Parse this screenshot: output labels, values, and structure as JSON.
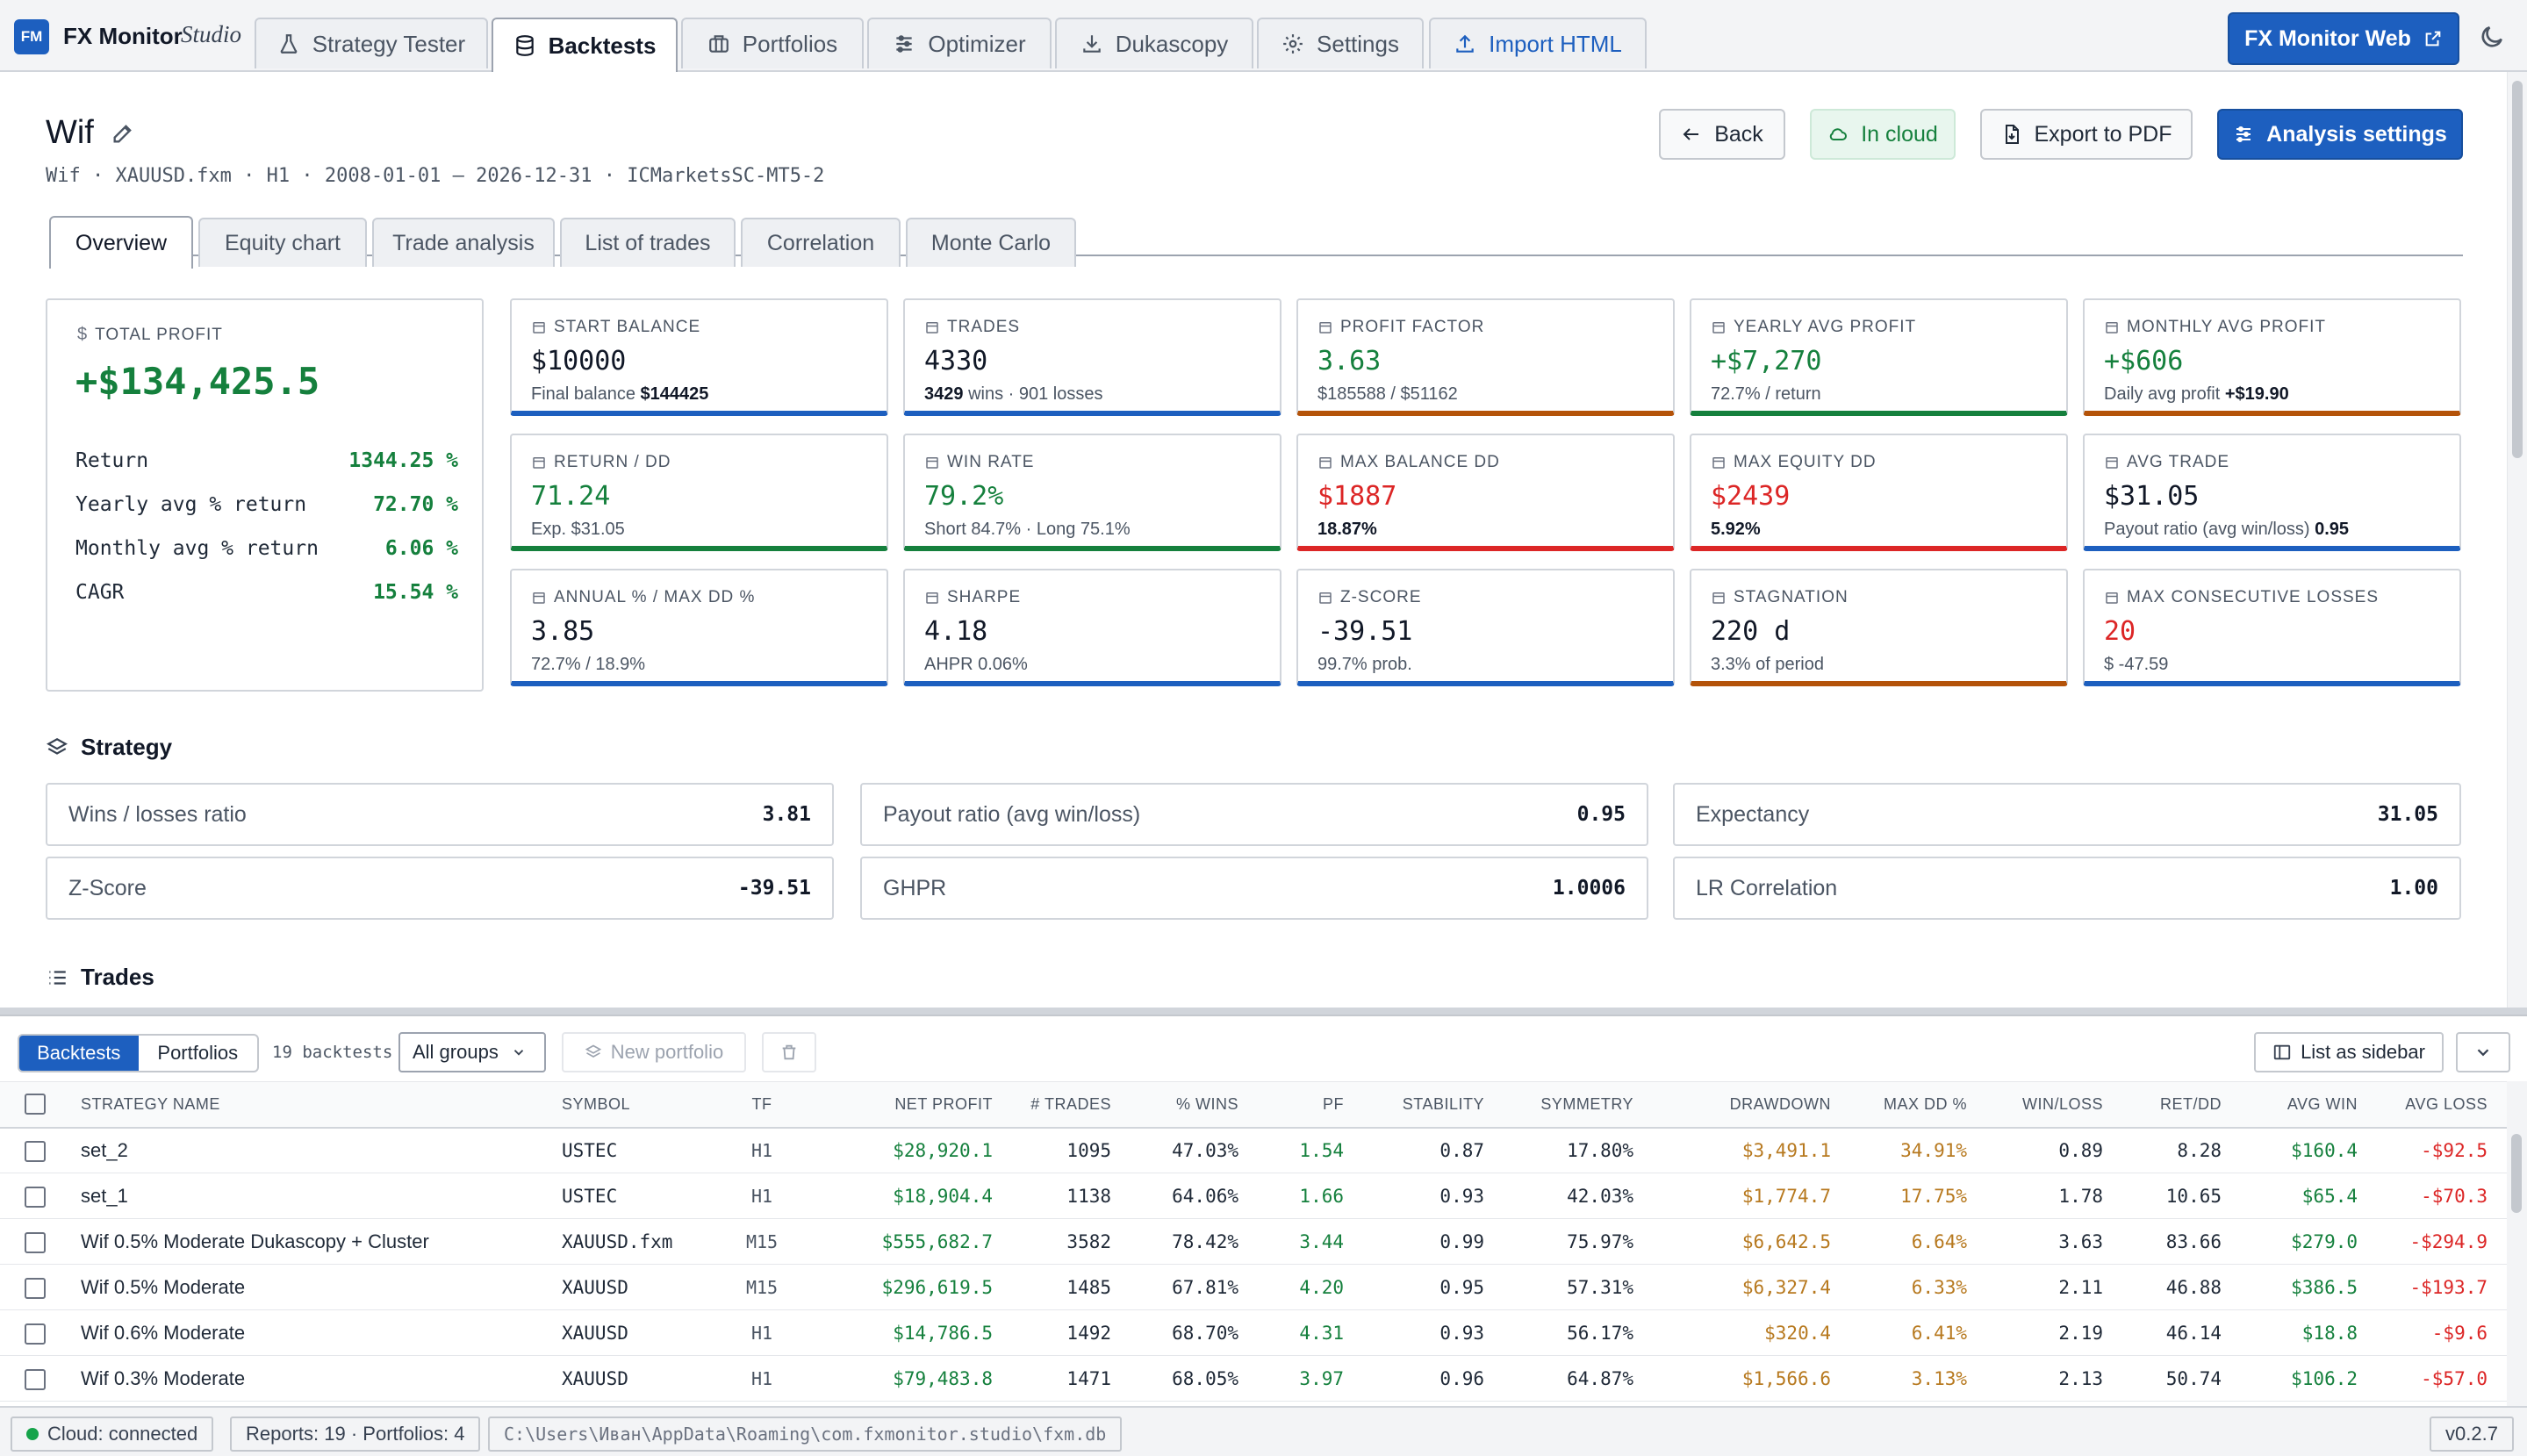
{
  "app": {
    "logo": "FM",
    "name": "FX Monitor",
    "sub": "Studio",
    "web_button": "FX Monitor Web"
  },
  "nav": [
    {
      "label": "Strategy Tester",
      "icon": "flask-icon"
    },
    {
      "label": "Backtests",
      "icon": "database-icon"
    },
    {
      "label": "Portfolios",
      "icon": "briefcase-icon"
    },
    {
      "label": "Optimizer",
      "icon": "sliders-icon"
    },
    {
      "label": "Dukascopy",
      "icon": "download-icon"
    },
    {
      "label": "Settings",
      "icon": "gear-icon"
    },
    {
      "label": "Import HTML",
      "icon": "upload-icon"
    }
  ],
  "header": {
    "title": "Wif",
    "subtitle": "Wif · XAUUSD.fxm · H1 · 2008-01-01 – 2026-12-31 · ICMarketsSC-MT5-2",
    "back": "Back",
    "cloud": "In cloud",
    "export": "Export to PDF",
    "analysis": "Analysis settings"
  },
  "subtabs": [
    "Overview",
    "Equity chart",
    "Trade analysis",
    "List of trades",
    "Correlation",
    "Monte Carlo"
  ],
  "total": {
    "label": "TOTAL PROFIT",
    "value": "+$134,425.5",
    "rows": [
      {
        "label": "Return",
        "value": "1344.25 %"
      },
      {
        "label": "Yearly avg % return",
        "value": "72.70 %"
      },
      {
        "label": "Monthly avg % return",
        "value": "6.06 %"
      },
      {
        "label": "CAGR",
        "value": "15.54 %"
      }
    ]
  },
  "metrics": [
    {
      "label": "START BALANCE",
      "value": "$10000",
      "sub_a": "Final balance",
      "sub_b": "$144425",
      "sub_c": ""
    },
    {
      "label": "TRADES",
      "value": "4330",
      "sub_a": "",
      "sub_b": "3429",
      "sub_c": "wins · 901 losses"
    },
    {
      "label": "PROFIT FACTOR",
      "value": "3.63",
      "sub_a": "$185588 / $51162",
      "sub_b": "",
      "sub_c": ""
    },
    {
      "label": "YEARLY AVG PROFIT",
      "value": "+$7,270",
      "sub_a": "72.7% / return",
      "sub_b": "",
      "sub_c": ""
    },
    {
      "label": "MONTHLY AVG PROFIT",
      "value": "+$606",
      "sub_a": "Daily avg profit",
      "sub_b": "+$19.90",
      "sub_c": ""
    },
    {
      "label": "RETURN / DD",
      "value": "71.24",
      "sub_a": "Exp. $31.05",
      "sub_b": "",
      "sub_c": ""
    },
    {
      "label": "WIN RATE",
      "value": "79.2%",
      "sub_a": "Short 84.7% · Long 75.1%",
      "sub_b": "",
      "sub_c": ""
    },
    {
      "label": "MAX BALANCE DD",
      "value": "$1887",
      "sub_a": "",
      "sub_b": "18.87%",
      "sub_c": ""
    },
    {
      "label": "MAX EQUITY DD",
      "value": "$2439",
      "sub_a": "",
      "sub_b": "5.92%",
      "sub_c": ""
    },
    {
      "label": "AVG TRADE",
      "value": "$31.05",
      "sub_a": "Payout ratio (avg win/loss)",
      "sub_b": "0.95",
      "sub_c": ""
    },
    {
      "label": "ANNUAL % / MAX DD %",
      "value": "3.85",
      "sub_a": "72.7% / 18.9%",
      "sub_b": "",
      "sub_c": ""
    },
    {
      "label": "SHARPE",
      "value": "4.18",
      "sub_a": "AHPR 0.06%",
      "sub_b": "",
      "sub_c": ""
    },
    {
      "label": "Z-SCORE",
      "value": "-39.51",
      "sub_a": "99.7% prob.",
      "sub_b": "",
      "sub_c": ""
    },
    {
      "label": "STAGNATION",
      "value": "220 d",
      "sub_a": "3.3% of period",
      "sub_b": "",
      "sub_c": ""
    },
    {
      "label": "MAX CONSECUTIVE LOSSES",
      "value": "20",
      "sub_a": "$ -47.59",
      "sub_b": "",
      "sub_c": ""
    }
  ],
  "strategy": {
    "title": "Strategy",
    "items": [
      {
        "label": "Wins / losses ratio",
        "value": "3.81"
      },
      {
        "label": "Payout ratio (avg win/loss)",
        "value": "0.95"
      },
      {
        "label": "Expectancy",
        "value": "31.05"
      },
      {
        "label": "Z-Score",
        "value": "-39.51"
      },
      {
        "label": "GHPR",
        "value": "1.0006"
      },
      {
        "label": "LR Correlation",
        "value": "1.00"
      }
    ]
  },
  "trades_title": "Trades",
  "panel": {
    "seg": [
      "Backtests",
      "Portfolios"
    ],
    "count": "19 backtests",
    "groups": "All groups",
    "new_portfolio": "New portfolio",
    "list_sidebar": "List as sidebar",
    "columns": [
      "STRATEGY NAME",
      "SYMBOL",
      "TF",
      "NET PROFIT",
      "# TRADES",
      "% WINS",
      "PF",
      "STABILITY",
      "SYMMETRY",
      "DRAWDOWN",
      "MAX DD %",
      "WIN/LOSS",
      "RET/DD",
      "AVG WIN",
      "AVG LOSS"
    ],
    "rows": [
      [
        "set_2",
        "USTEC",
        "H1",
        "$28,920.1",
        "1095",
        "47.03%",
        "1.54",
        "0.87",
        "17.80%",
        "$3,491.1",
        "34.91%",
        "0.89",
        "8.28",
        "$160.4",
        "-$92.5"
      ],
      [
        "set_1",
        "USTEC",
        "H1",
        "$18,904.4",
        "1138",
        "64.06%",
        "1.66",
        "0.93",
        "42.03%",
        "$1,774.7",
        "17.75%",
        "1.78",
        "10.65",
        "$65.4",
        "-$70.3"
      ],
      [
        "Wif 0.5% Moderate Dukascopy + Cluster",
        "XAUUSD.fxm",
        "M15",
        "$555,682.7",
        "3582",
        "78.42%",
        "3.44",
        "0.99",
        "75.97%",
        "$6,642.5",
        "6.64%",
        "3.63",
        "83.66",
        "$279.0",
        "-$294.9"
      ],
      [
        "Wif 0.5% Moderate",
        "XAUUSD",
        "M15",
        "$296,619.5",
        "1485",
        "67.81%",
        "4.20",
        "0.95",
        "57.31%",
        "$6,327.4",
        "6.33%",
        "2.11",
        "46.88",
        "$386.5",
        "-$193.7"
      ],
      [
        "Wif 0.6% Moderate",
        "XAUUSD",
        "H1",
        "$14,786.5",
        "1492",
        "68.70%",
        "4.31",
        "0.93",
        "56.17%",
        "$320.4",
        "6.41%",
        "2.19",
        "46.14",
        "$18.8",
        "-$9.6"
      ],
      [
        "Wif 0.3% Moderate",
        "XAUUSD",
        "H1",
        "$79,483.8",
        "1471",
        "68.05%",
        "3.97",
        "0.96",
        "64.87%",
        "$1,566.6",
        "3.13%",
        "2.13",
        "50.74",
        "$106.2",
        "-$57.0"
      ]
    ]
  },
  "status": {
    "cloud": "Cloud: connected",
    "reports": "Reports: 19 · Portfolios: 4",
    "path": "C:\\Users\\Иван\\AppData\\Roaming\\com.fxmonitor.studio\\fxm.db",
    "version": "v0.2.7"
  },
  "colors": {
    "accent": "#1d5fbf",
    "green": "#15803d",
    "red": "#dc2626",
    "orange": "#b45309"
  }
}
